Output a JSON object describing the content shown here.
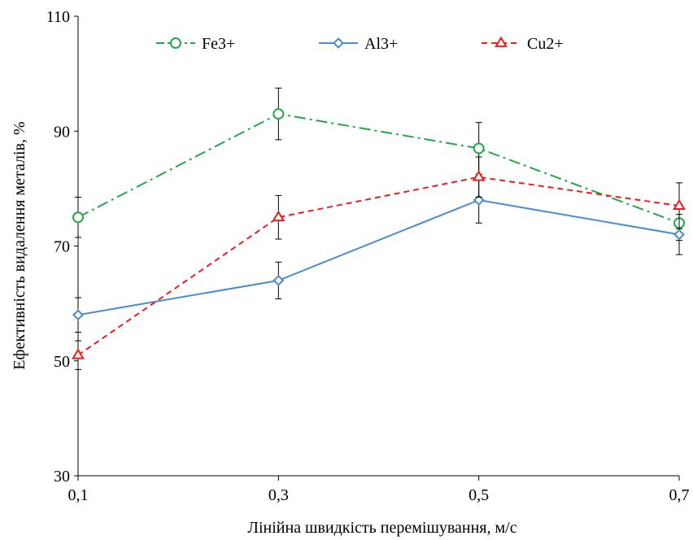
{
  "chart_data": {
    "type": "line",
    "title": "",
    "xlabel": "Лінійна швидкість перемішування,  м/с",
    "ylabel": "Ефективність видалення металів, %",
    "x": [
      "0,1",
      "0,3",
      "0,5",
      "0,7"
    ],
    "ylim": [
      30,
      110
    ],
    "yticks": [
      "30",
      "50",
      "70",
      "90",
      "110"
    ],
    "grid": false,
    "legend_position": "top",
    "series": [
      {
        "name": "Fe3+",
        "color": "#22a84a",
        "marker": "circle",
        "line_style": "dash-dot",
        "values": [
          75,
          93,
          87,
          74
        ],
        "errors": [
          3.5,
          4.5,
          4.5,
          3
        ]
      },
      {
        "name": "Al3+",
        "color": "#4a8bd0",
        "marker": "diamond",
        "line_style": "solid",
        "values": [
          58,
          64,
          78,
          72
        ],
        "errors": [
          3,
          3.2,
          4,
          3.5
        ]
      },
      {
        "name": "Cu2+",
        "color": "#ee1c1c",
        "marker": "triangle",
        "line_style": "dashed",
        "values": [
          51,
          75,
          82,
          77
        ],
        "errors": [
          2.5,
          3.8,
          3.5,
          4
        ]
      }
    ]
  }
}
